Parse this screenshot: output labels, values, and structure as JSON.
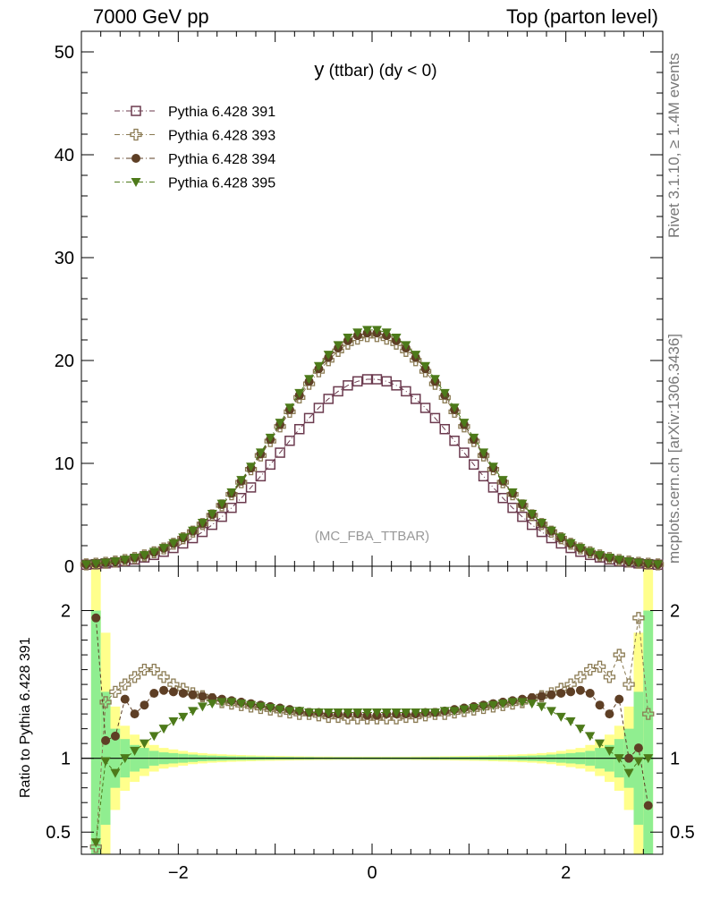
{
  "header": {
    "left": "7000 GeV pp",
    "right": "Top (parton level)"
  },
  "side_text": {
    "rivet": "Rivet 3.1.10, ≥ 1.4M events",
    "mcplots": "mcplots.cern.ch [arXiv:1306.3436]"
  },
  "chart_data": [
    {
      "type": "scatter",
      "title_main": "y",
      "title_rest": " (ttbar) (dy < 0)",
      "watermark": "(MC_FBA_TTBAR)",
      "xlim": [
        -3.0,
        3.0
      ],
      "ylim": [
        0,
        52
      ],
      "yticks": [
        0,
        10,
        20,
        30,
        40,
        50
      ],
      "legend_position": "top-left",
      "peaks": [
        18.2,
        22.4,
        22.7,
        23.0
      ],
      "widths": [
        0.95,
        0.95,
        0.95,
        0.95
      ],
      "bin_width": 0.1,
      "series": [
        {
          "name": "Pythia 6.428 391",
          "color": "#6b3a4e",
          "marker": "open-square"
        },
        {
          "name": "Pythia 6.428 393",
          "color": "#8a7a52",
          "marker": "open-cross"
        },
        {
          "name": "Pythia 6.428 394",
          "color": "#5e3f25",
          "marker": "filled-circle"
        },
        {
          "name": "Pythia 6.428 395",
          "color": "#4d7a1a",
          "marker": "filled-triangle-down"
        }
      ]
    },
    {
      "type": "scatter",
      "ylabel": "Ratio to Pythia 6.428 391",
      "xlim": [
        -3.0,
        3.0
      ],
      "ylim": [
        0.35,
        2.3
      ],
      "yticks": [
        0.5,
        1,
        2
      ],
      "ytick_labels": [
        "0.5",
        "1",
        "2"
      ],
      "xticks": [
        -2,
        0,
        2
      ],
      "xtick_labels": [
        "−2",
        "0",
        "2"
      ],
      "ratio_x": [
        -2.85,
        -2.75,
        -2.65,
        -2.55,
        -2.45,
        -2.35,
        -2.25,
        -2.15,
        -2.05,
        -1.95,
        -1.85,
        -1.75,
        -1.65,
        -1.55,
        -1.45,
        -1.35,
        -1.25,
        -1.15,
        -1.05,
        -0.95,
        -0.85,
        -0.75,
        -0.65,
        -0.55,
        -0.45,
        -0.35,
        -0.25,
        -0.15,
        -0.05,
        0.05,
        0.15,
        0.25,
        0.35,
        0.45,
        0.55,
        0.65,
        0.75,
        0.85,
        0.95,
        1.05,
        1.15,
        1.25,
        1.35,
        1.45,
        1.55,
        1.65,
        1.75,
        1.85,
        1.95,
        2.05,
        2.15,
        2.25,
        2.35,
        2.45,
        2.55,
        2.65,
        2.75,
        2.85
      ],
      "ratio_series": [
        {
          "name": "Pythia 6.428 393",
          "values": [
            0.4,
            1.38,
            1.45,
            1.5,
            1.55,
            1.6,
            1.6,
            1.55,
            1.5,
            1.47,
            1.44,
            1.42,
            1.4,
            1.38,
            1.37,
            1.36,
            1.35,
            1.34,
            1.33,
            1.32,
            1.31,
            1.3,
            1.3,
            1.29,
            1.28,
            1.28,
            1.27,
            1.27,
            1.27,
            1.27,
            1.27,
            1.27,
            1.28,
            1.28,
            1.29,
            1.3,
            1.3,
            1.31,
            1.32,
            1.33,
            1.34,
            1.35,
            1.36,
            1.37,
            1.38,
            1.4,
            1.42,
            1.44,
            1.47,
            1.5,
            1.55,
            1.6,
            1.62,
            1.55,
            1.7,
            1.5,
            1.95,
            1.3
          ]
        },
        {
          "name": "Pythia 6.428 394",
          "values": [
            1.95,
            1.12,
            1.15,
            1.4,
            1.3,
            1.36,
            1.44,
            1.46,
            1.45,
            1.44,
            1.43,
            1.42,
            1.41,
            1.4,
            1.39,
            1.38,
            1.37,
            1.36,
            1.35,
            1.34,
            1.33,
            1.32,
            1.31,
            1.31,
            1.3,
            1.3,
            1.3,
            1.3,
            1.29,
            1.29,
            1.3,
            1.3,
            1.3,
            1.3,
            1.31,
            1.31,
            1.32,
            1.33,
            1.34,
            1.35,
            1.36,
            1.37,
            1.38,
            1.39,
            1.4,
            1.41,
            1.42,
            1.43,
            1.44,
            1.45,
            1.46,
            1.44,
            1.36,
            1.3,
            1.4,
            1.0,
            1.07,
            0.68
          ]
        },
        {
          "name": "Pythia 6.428 395",
          "values": [
            0.43,
            0.98,
            0.9,
            1.0,
            1.05,
            1.1,
            1.15,
            1.2,
            1.25,
            1.28,
            1.32,
            1.35,
            1.37,
            1.38,
            1.38,
            1.37,
            1.36,
            1.35,
            1.34,
            1.33,
            1.32,
            1.32,
            1.31,
            1.31,
            1.31,
            1.31,
            1.31,
            1.31,
            1.31,
            1.31,
            1.31,
            1.31,
            1.31,
            1.31,
            1.31,
            1.31,
            1.32,
            1.32,
            1.33,
            1.34,
            1.35,
            1.36,
            1.37,
            1.38,
            1.38,
            1.37,
            1.35,
            1.32,
            1.28,
            1.25,
            1.2,
            1.15,
            1.1,
            1.05,
            1.0,
            0.9,
            0.98,
            1.0
          ]
        }
      ],
      "band_yellow_halfwidth": [
        2.0,
        0.85,
        0.35,
        0.22,
        0.16,
        0.12,
        0.09,
        0.07,
        0.06,
        0.05,
        0.04,
        0.035,
        0.03,
        0.027,
        0.024,
        0.022,
        0.02,
        0.018,
        0.017,
        0.016,
        0.015,
        0.014,
        0.013,
        0.012,
        0.012,
        0.011,
        0.011,
        0.011,
        0.011,
        0.011,
        0.011,
        0.011,
        0.011,
        0.012,
        0.012,
        0.013,
        0.014,
        0.015,
        0.016,
        0.017,
        0.018,
        0.02,
        0.022,
        0.024,
        0.027,
        0.03,
        0.035,
        0.04,
        0.05,
        0.06,
        0.07,
        0.09,
        0.12,
        0.16,
        0.22,
        0.35,
        0.85,
        2.0
      ],
      "band_green_halfwidth": [
        1.0,
        0.45,
        0.2,
        0.13,
        0.09,
        0.07,
        0.05,
        0.04,
        0.035,
        0.03,
        0.025,
        0.02,
        0.018,
        0.016,
        0.014,
        0.013,
        0.012,
        0.011,
        0.01,
        0.009,
        0.009,
        0.008,
        0.008,
        0.007,
        0.007,
        0.007,
        0.007,
        0.007,
        0.007,
        0.007,
        0.007,
        0.007,
        0.007,
        0.007,
        0.007,
        0.008,
        0.008,
        0.009,
        0.009,
        0.01,
        0.011,
        0.012,
        0.013,
        0.014,
        0.016,
        0.018,
        0.02,
        0.025,
        0.03,
        0.035,
        0.04,
        0.05,
        0.07,
        0.09,
        0.13,
        0.2,
        0.45,
        1.0
      ]
    }
  ]
}
